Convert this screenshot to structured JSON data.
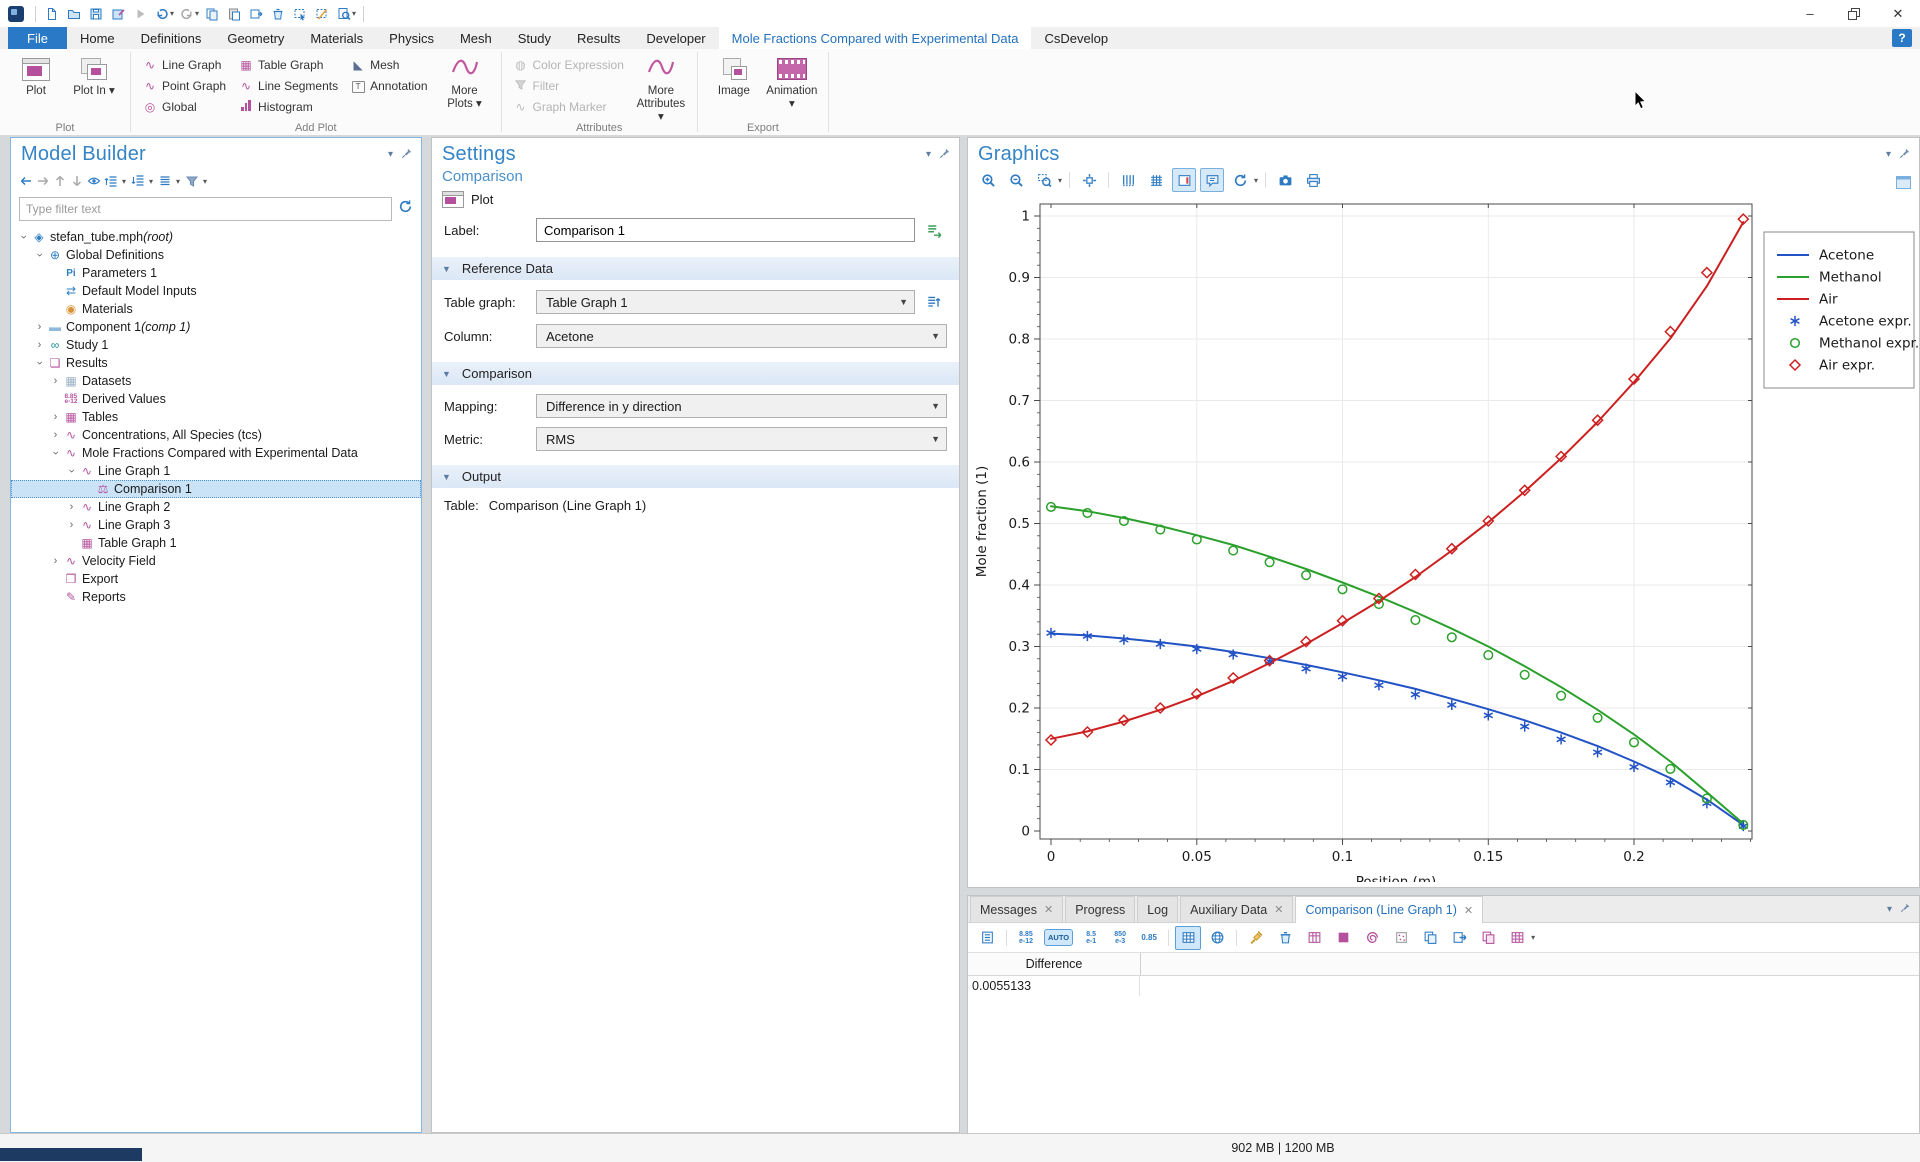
{
  "titlebar": {
    "window_controls": [
      "minimize",
      "restore",
      "close"
    ]
  },
  "help_button": "?",
  "menu_tabs": [
    {
      "label": "File",
      "type": "file"
    },
    {
      "label": "Home"
    },
    {
      "label": "Definitions"
    },
    {
      "label": "Geometry"
    },
    {
      "label": "Materials"
    },
    {
      "label": "Physics"
    },
    {
      "label": "Mesh"
    },
    {
      "label": "Study"
    },
    {
      "label": "Results"
    },
    {
      "label": "Developer"
    },
    {
      "label": "Mole Fractions Compared with Experimental Data",
      "active": true
    },
    {
      "label": "CsDevelop"
    }
  ],
  "ribbon": {
    "groups": [
      {
        "label": "Plot",
        "big": [
          {
            "label": "Plot",
            "icon": "plot-window"
          },
          {
            "label": "Plot In",
            "icon": "plot-in",
            "dropdown": true
          }
        ]
      },
      {
        "label": "Add Plot",
        "columns": [
          [
            {
              "label": "Line Graph",
              "icon": "line-graph"
            },
            {
              "label": "Point Graph",
              "icon": "point-graph"
            },
            {
              "label": "Global",
              "icon": "global"
            }
          ],
          [
            {
              "label": "Table Graph",
              "icon": "table-graph"
            },
            {
              "label": "Line Segments",
              "icon": "line-segments"
            },
            {
              "label": "Histogram",
              "icon": "histogram"
            }
          ],
          [
            {
              "label": "Mesh",
              "icon": "mesh"
            },
            {
              "label": "Annotation",
              "icon": "annotation"
            }
          ]
        ],
        "big": [
          {
            "label": "More Plots",
            "icon": "sine",
            "dropdown": true
          }
        ]
      },
      {
        "label": "Attributes",
        "columns": [
          [
            {
              "label": "Color Expression",
              "icon": "color-expression",
              "disabled": true
            },
            {
              "label": "Filter",
              "icon": "filter",
              "disabled": true
            },
            {
              "label": "Graph Marker",
              "icon": "graph-marker",
              "disabled": true
            }
          ]
        ],
        "big": [
          {
            "label": "More Attributes",
            "icon": "sine",
            "dropdown": true
          }
        ]
      },
      {
        "label": "Export",
        "big": [
          {
            "label": "Image",
            "icon": "image"
          },
          {
            "label": "Animation",
            "icon": "film",
            "dropdown": true
          }
        ]
      }
    ]
  },
  "model_builder": {
    "title": "Model Builder",
    "filter_placeholder": "Type filter text",
    "tree": [
      {
        "label": "stefan_tube.mph",
        "suffix": " (root)",
        "icon": "model",
        "depth": 0,
        "expander": "v"
      },
      {
        "label": "Global Definitions",
        "icon": "globe",
        "depth": 1,
        "expander": "v"
      },
      {
        "label": "Parameters 1",
        "icon": "parameters",
        "depth": 2
      },
      {
        "label": "Default Model Inputs",
        "icon": "model-inputs",
        "depth": 2
      },
      {
        "label": "Materials",
        "icon": "materials",
        "depth": 2
      },
      {
        "label": "Component 1",
        "suffix": " (comp 1)",
        "icon": "component",
        "depth": 1,
        "expander": ">"
      },
      {
        "label": "Study 1",
        "icon": "study",
        "depth": 1,
        "expander": ">"
      },
      {
        "label": "Results",
        "icon": "results",
        "depth": 1,
        "expander": "v"
      },
      {
        "label": "Datasets",
        "icon": "datasets",
        "depth": 2,
        "expander": ">"
      },
      {
        "label": "Derived Values",
        "icon": "derived",
        "depth": 2
      },
      {
        "label": "Tables",
        "icon": "tables",
        "depth": 2,
        "expander": ">"
      },
      {
        "label": "Concentrations, All Species (tcs)",
        "icon": "plot-group",
        "depth": 2,
        "expander": ">"
      },
      {
        "label": "Mole Fractions Compared with Experimental Data",
        "icon": "plot-group",
        "depth": 2,
        "expander": "v"
      },
      {
        "label": "Line Graph 1",
        "icon": "line-graph",
        "depth": 3,
        "expander": "v"
      },
      {
        "label": "Comparison 1",
        "icon": "comparison",
        "depth": 4,
        "selected": true
      },
      {
        "label": "Line Graph 2",
        "icon": "line-graph",
        "depth": 3,
        "expander": ">"
      },
      {
        "label": "Line Graph 3",
        "icon": "line-graph",
        "depth": 3,
        "expander": ">"
      },
      {
        "label": "Table Graph 1",
        "icon": "table-graph",
        "depth": 3
      },
      {
        "label": "Velocity Field",
        "icon": "plot-group",
        "depth": 2,
        "expander": ">"
      },
      {
        "label": "Export",
        "icon": "export",
        "depth": 2
      },
      {
        "label": "Reports",
        "icon": "reports",
        "depth": 2
      }
    ]
  },
  "settings": {
    "title": "Settings",
    "subtitle": "Comparison",
    "plot_button": "Plot",
    "label_field": {
      "label": "Label:",
      "value": "Comparison 1"
    },
    "sections": {
      "reference_data": {
        "title": "Reference Data",
        "table_graph": {
          "label": "Table graph:",
          "value": "Table Graph 1"
        },
        "column": {
          "label": "Column:",
          "value": "Acetone"
        }
      },
      "comparison": {
        "title": "Comparison",
        "mapping": {
          "label": "Mapping:",
          "value": "Difference in y direction"
        },
        "metric": {
          "label": "Metric:",
          "value": "RMS"
        }
      },
      "output": {
        "title": "Output",
        "table_label": "Table:",
        "table_value": "Comparison (Line Graph 1)"
      }
    }
  },
  "graphics": {
    "title": "Graphics",
    "toolbar": [
      "zoom-in",
      "zoom-out",
      "zoom-box",
      "zoom-extents",
      "grid-x",
      "grid",
      "legend",
      "tooltip",
      "refresh",
      "camera",
      "print"
    ]
  },
  "chart_data": {
    "type": "line",
    "title": "",
    "xlabel": "Position (m)",
    "ylabel": "Mole fraction (1)",
    "xlim": [
      -0.004,
      0.2405
    ],
    "ylim": [
      -0.013,
      1.02
    ],
    "xticks": [
      0,
      0.05,
      0.1,
      0.15,
      0.2
    ],
    "yticks": [
      0,
      0.1,
      0.2,
      0.3,
      0.4,
      0.5,
      0.6,
      0.7,
      0.8,
      0.9,
      1
    ],
    "grid": true,
    "legend_position": "outside-right",
    "x": [
      0,
      0.0125,
      0.025,
      0.0375,
      0.05,
      0.0625,
      0.075,
      0.0875,
      0.1,
      0.1125,
      0.125,
      0.1375,
      0.15,
      0.1625,
      0.175,
      0.1875,
      0.2,
      0.2125,
      0.225,
      0.2375
    ],
    "series": [
      {
        "name": "Acetone",
        "type": "line",
        "color": "#2253c4",
        "values": [
          0.321,
          0.318,
          0.313,
          0.307,
          0.3,
          0.291,
          0.281,
          0.27,
          0.258,
          0.245,
          0.231,
          0.215,
          0.198,
          0.18,
          0.16,
          0.138,
          0.113,
          0.086,
          0.051,
          0.01
        ]
      },
      {
        "name": "Methanol",
        "type": "line",
        "color": "#2ca02c",
        "values": [
          0.528,
          0.52,
          0.509,
          0.496,
          0.481,
          0.465,
          0.446,
          0.426,
          0.404,
          0.381,
          0.356,
          0.329,
          0.3,
          0.268,
          0.234,
          0.197,
          0.157,
          0.113,
          0.063,
          0.012
        ]
      },
      {
        "name": "Air",
        "type": "line",
        "color": "#cc2020",
        "values": [
          0.15,
          0.162,
          0.178,
          0.197,
          0.219,
          0.244,
          0.273,
          0.304,
          0.338,
          0.374,
          0.413,
          0.456,
          0.502,
          0.552,
          0.606,
          0.665,
          0.73,
          0.801,
          0.886,
          0.99
        ]
      },
      {
        "name": "Acetone expr.",
        "type": "scatter",
        "marker": "asterisk",
        "color": "#2253c4",
        "values": [
          0.322,
          0.317,
          0.311,
          0.304,
          0.296,
          0.287,
          0.276,
          0.264,
          0.251,
          0.237,
          0.222,
          0.205,
          0.188,
          0.17,
          0.149,
          0.128,
          0.104,
          0.079,
          0.045,
          0.008
        ]
      },
      {
        "name": "Methanol expr.",
        "type": "scatter",
        "marker": "circle",
        "color": "#2ca02c",
        "values": [
          0.527,
          0.517,
          0.504,
          0.49,
          0.474,
          0.456,
          0.437,
          0.416,
          0.393,
          0.369,
          0.343,
          0.315,
          0.286,
          0.254,
          0.22,
          0.184,
          0.144,
          0.101,
          0.053,
          0.01
        ]
      },
      {
        "name": "Air expr.",
        "type": "scatter",
        "marker": "diamond",
        "color": "#cc2020",
        "values": [
          0.148,
          0.161,
          0.18,
          0.2,
          0.223,
          0.249,
          0.277,
          0.308,
          0.342,
          0.378,
          0.417,
          0.459,
          0.504,
          0.554,
          0.609,
          0.668,
          0.735,
          0.812,
          0.908,
          0.995
        ]
      }
    ]
  },
  "bottom_panel": {
    "tabs": [
      {
        "label": "Messages",
        "closable": true
      },
      {
        "label": "Progress"
      },
      {
        "label": "Log"
      },
      {
        "label": "Auxiliary Data",
        "closable": true
      },
      {
        "label": "Comparison (Line Graph 1)",
        "active": true,
        "closable": true
      }
    ],
    "formats": {
      "f1": "8.85|e-12",
      "auto": "AUTO",
      "f2": "8.5|e-1",
      "f3": "850|e-3",
      "f4": "0.85"
    },
    "table": {
      "columns": [
        "Difference"
      ],
      "rows": [
        [
          "0.0055133"
        ]
      ]
    }
  },
  "status_bar": {
    "memory": "902 MB | 1200 MB"
  }
}
